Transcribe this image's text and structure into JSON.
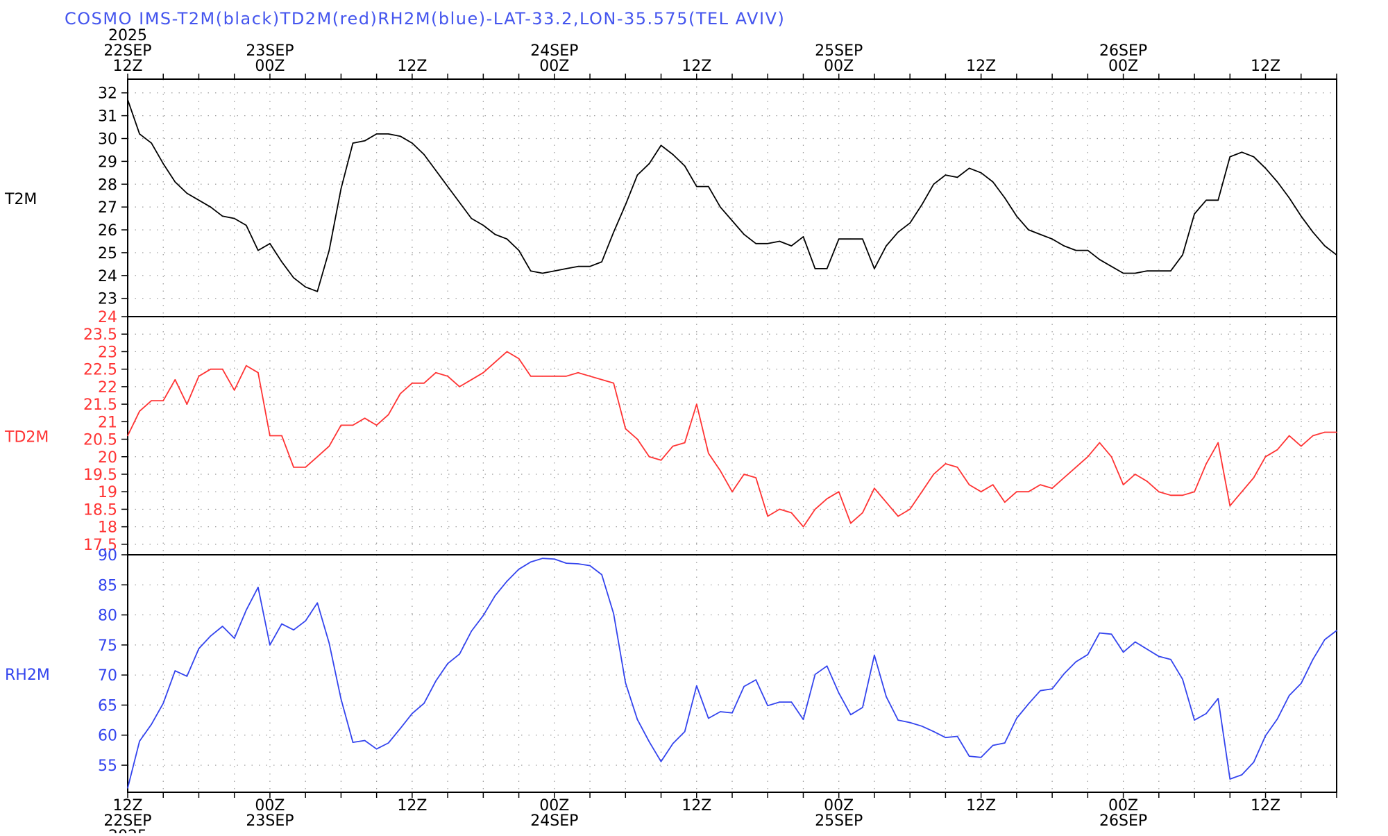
{
  "title": "COSMO IMS-T2M(black)TD2M(red)RH2M(blue)-LAT-33.2,LON-35.575(TEL AVIV)",
  "colors": {
    "t2m": "#000000",
    "td2m": "#ff3333",
    "rh2m": "#3344ee",
    "title": "#4455ee",
    "grid": "#9a9a9a"
  },
  "chart_data": {
    "type": "line",
    "x": {
      "unit": "hours since 2025-09-22 12Z",
      "range": [
        0,
        102
      ]
    },
    "top_axis": [
      {
        "hour": 0,
        "lines": [
          "2025",
          "22SEP",
          "12Z"
        ]
      },
      {
        "hour": 12,
        "lines": [
          "23SEP",
          "00Z"
        ]
      },
      {
        "hour": 24,
        "lines": [
          "12Z"
        ]
      },
      {
        "hour": 36,
        "lines": [
          "24SEP",
          "00Z"
        ]
      },
      {
        "hour": 48,
        "lines": [
          "12Z"
        ]
      },
      {
        "hour": 60,
        "lines": [
          "25SEP",
          "00Z"
        ]
      },
      {
        "hour": 72,
        "lines": [
          "12Z"
        ]
      },
      {
        "hour": 84,
        "lines": [
          "26SEP",
          "00Z"
        ]
      },
      {
        "hour": 96,
        "lines": [
          "12Z"
        ]
      }
    ],
    "bottom_axis": [
      {
        "hour": 0,
        "lines": [
          "12Z",
          "22SEP",
          "2025"
        ]
      },
      {
        "hour": 12,
        "lines": [
          "00Z",
          "23SEP"
        ]
      },
      {
        "hour": 24,
        "lines": [
          "12Z"
        ]
      },
      {
        "hour": 36,
        "lines": [
          "00Z",
          "24SEP"
        ]
      },
      {
        "hour": 48,
        "lines": [
          "12Z"
        ]
      },
      {
        "hour": 60,
        "lines": [
          "00Z",
          "25SEP"
        ]
      },
      {
        "hour": 72,
        "lines": [
          "12Z"
        ]
      },
      {
        "hour": 84,
        "lines": [
          "00Z",
          "26SEP"
        ]
      },
      {
        "hour": 96,
        "lines": [
          "12Z"
        ]
      }
    ],
    "panels": [
      {
        "name": "T2M",
        "ylabel": "T2M",
        "color": "#000000",
        "ylim": [
          22.2,
          32.6
        ],
        "yticks": [
          "23",
          "24",
          "25",
          "26",
          "27",
          "28",
          "29",
          "30",
          "31",
          "32"
        ],
        "values": [
          31.7,
          30.2,
          29.8,
          28.9,
          28.1,
          27.6,
          27.3,
          27.0,
          26.6,
          26.5,
          26.2,
          25.1,
          25.4,
          24.6,
          23.9,
          23.5,
          23.3,
          25.1,
          27.8,
          29.8,
          29.9,
          30.2,
          30.2,
          30.1,
          29.8,
          29.3,
          28.6,
          27.9,
          27.2,
          26.5,
          26.2,
          25.8,
          25.6,
          25.1,
          24.2,
          24.1,
          24.2,
          24.3,
          24.4,
          24.4,
          24.6,
          25.9,
          27.1,
          28.4,
          28.9,
          29.7,
          29.3,
          28.8,
          27.9,
          27.9,
          27.0,
          26.4,
          25.8,
          25.4,
          25.4,
          25.5,
          25.3,
          25.7,
          24.3,
          24.3,
          25.6,
          25.6,
          25.6,
          24.3,
          25.3,
          25.9,
          26.3,
          27.1,
          28.0,
          28.4,
          28.3,
          28.7,
          28.5,
          28.1,
          27.4,
          26.6,
          26.0,
          25.8,
          25.6,
          25.3,
          25.1,
          25.1,
          24.7,
          24.4,
          24.1,
          24.1,
          24.2,
          24.2,
          24.2,
          24.9,
          26.7,
          27.3,
          27.3,
          29.2,
          29.4,
          29.2,
          28.7,
          28.1,
          27.4,
          26.6,
          25.9,
          25.3,
          24.9
        ]
      },
      {
        "name": "TD2M",
        "ylabel": "TD2M",
        "color": "#ff3333",
        "ylim": [
          17.2,
          24.0
        ],
        "yticks": [
          "17.5",
          "18",
          "18.5",
          "19",
          "19.5",
          "20",
          "20.5",
          "21",
          "21.5",
          "22",
          "22.5",
          "23",
          "23.5",
          "24"
        ],
        "values": [
          20.6,
          21.3,
          21.6,
          21.6,
          22.2,
          21.5,
          22.3,
          22.5,
          22.5,
          21.9,
          22.6,
          22.4,
          20.6,
          20.6,
          19.7,
          19.7,
          20.0,
          20.3,
          20.9,
          20.9,
          21.1,
          20.9,
          21.2,
          21.8,
          22.1,
          22.1,
          22.4,
          22.3,
          22.0,
          22.2,
          22.4,
          22.7,
          23.0,
          22.8,
          22.3,
          22.3,
          22.3,
          22.3,
          22.4,
          22.3,
          22.2,
          22.1,
          20.8,
          20.5,
          20.0,
          19.9,
          20.3,
          20.4,
          21.5,
          20.1,
          19.6,
          19.0,
          19.5,
          19.4,
          18.3,
          18.5,
          18.4,
          18.0,
          18.5,
          18.8,
          19.0,
          18.1,
          18.4,
          19.1,
          18.7,
          18.3,
          18.5,
          19.0,
          19.5,
          19.8,
          19.7,
          19.2,
          19.0,
          19.2,
          18.7,
          19.0,
          19.0,
          19.2,
          19.1,
          19.4,
          19.7,
          20.0,
          20.4,
          20.0,
          19.2,
          19.5,
          19.3,
          19.0,
          18.9,
          18.9,
          19.0,
          19.8,
          20.4,
          18.6,
          19.0,
          19.4,
          20.0,
          20.2,
          20.6,
          20.3,
          20.6,
          20.7,
          20.7
        ]
      },
      {
        "name": "RH2M",
        "ylabel": "RH2M",
        "color": "#3344ee",
        "ylim": [
          50.5,
          90.0
        ],
        "yticks": [
          "55",
          "60",
          "65",
          "70",
          "75",
          "80",
          "85",
          "90"
        ],
        "values": [
          51.2,
          59.0,
          61.8,
          65.3,
          70.7,
          69.8,
          74.4,
          76.5,
          78.1,
          76.1,
          80.8,
          84.6,
          75.0,
          78.5,
          77.5,
          79.0,
          82.0,
          75.3,
          66.0,
          58.8,
          59.1,
          57.7,
          58.7,
          61.1,
          63.6,
          65.3,
          69.0,
          71.9,
          73.5,
          77.3,
          79.9,
          83.2,
          85.6,
          87.6,
          88.8,
          89.4,
          89.3,
          88.6,
          88.5,
          88.2,
          86.7,
          80.2,
          68.7,
          62.6,
          58.9,
          55.6,
          58.6,
          60.6,
          68.2,
          62.8,
          63.9,
          63.7,
          68.1,
          69.2,
          64.9,
          65.5,
          65.5,
          62.6,
          70.1,
          71.5,
          67.0,
          63.4,
          64.6,
          73.3,
          66.4,
          62.5,
          62.1,
          61.5,
          60.6,
          59.6,
          59.8,
          56.5,
          56.3,
          58.3,
          58.7,
          62.8,
          65.2,
          67.4,
          67.7,
          70.2,
          72.2,
          73.4,
          77.0,
          76.8,
          73.8,
          75.5,
          74.3,
          73.1,
          72.6,
          69.3,
          62.5,
          63.6,
          66.1,
          52.7,
          53.4,
          55.5,
          59.9,
          62.7,
          66.6,
          68.6,
          72.6,
          75.9,
          77.4
        ]
      }
    ]
  }
}
